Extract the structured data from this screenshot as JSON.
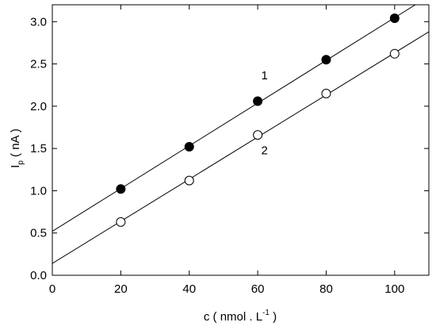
{
  "chart_data": {
    "type": "scatter",
    "title": "",
    "xlabel": {
      "main": "c ( nmol . L",
      "sup": "-1",
      "end": " )"
    },
    "ylabel": {
      "main": "I",
      "sub": "p",
      "end": " ( nA )"
    },
    "xlim": [
      0,
      110
    ],
    "ylim": [
      0.0,
      3.2
    ],
    "xticks": [
      0,
      20,
      40,
      60,
      80,
      100
    ],
    "xtick_labels": [
      "0",
      "20",
      "40",
      "60",
      "80",
      "100"
    ],
    "yticks": [
      0.0,
      0.5,
      1.0,
      1.5,
      2.0,
      2.5,
      3.0
    ],
    "ytick_labels": [
      "0.0",
      "0.5",
      "1.0",
      "1.5",
      "2.0",
      "2.5",
      "3.0"
    ],
    "grid": false,
    "legend": "none",
    "series": [
      {
        "name": "1",
        "marker": "filled-circle",
        "x": [
          20,
          40,
          60,
          80,
          100
        ],
        "y": [
          1.02,
          1.52,
          2.06,
          2.55,
          3.04
        ],
        "fit_line": {
          "x": [
            0,
            110
          ],
          "y": [
            0.52,
            3.3
          ]
        },
        "label_at": [
          62,
          2.32
        ]
      },
      {
        "name": "2",
        "marker": "open-circle",
        "x": [
          20,
          40,
          60,
          80,
          100
        ],
        "y": [
          0.63,
          1.12,
          1.66,
          2.15,
          2.62
        ],
        "fit_line": {
          "x": [
            0,
            110
          ],
          "y": [
            0.14,
            2.88
          ]
        },
        "label_at": [
          62,
          1.43
        ]
      }
    ]
  }
}
